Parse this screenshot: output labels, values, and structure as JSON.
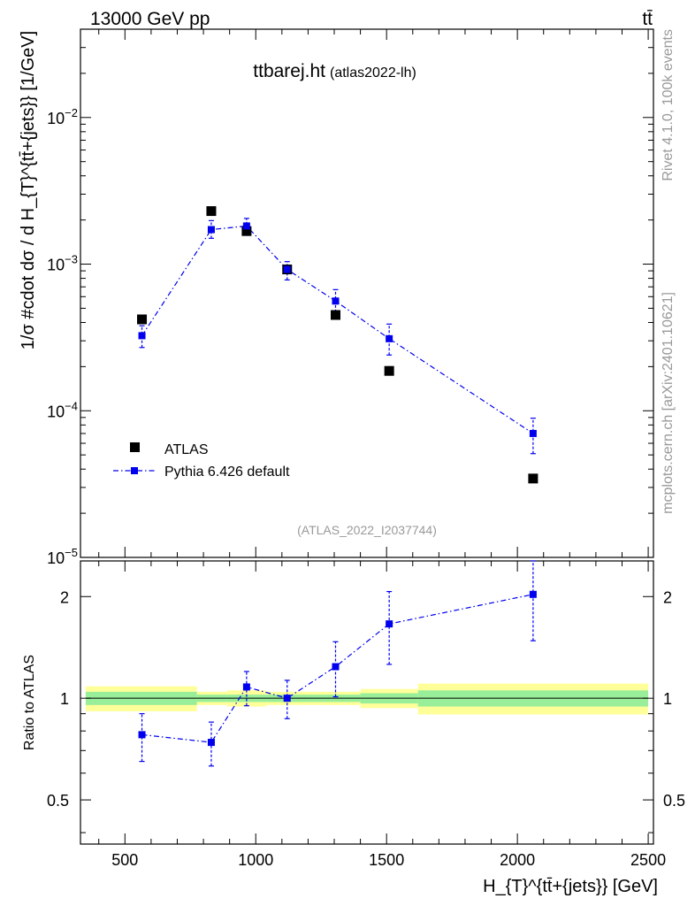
{
  "header": {
    "energy_label": "13000 GeV pp",
    "process_label": "tt̄"
  },
  "side_labels": {
    "rivet": "Rivet 4.1.0,  100k events",
    "mcplots": "mcplots.cern.ch [arXiv:2401.10621]"
  },
  "colors": {
    "mc": "#0000ee",
    "data": "#000000",
    "band_inner": "#99ee99",
    "band_outer": "#ffff99",
    "faint_text": "#999999"
  },
  "chart_data": [
    {
      "type": "scatter",
      "title": "ttbarej.ht",
      "subtitle": "(atlas2022-lh)",
      "watermark": "(ATLAS_2022_I2037744)",
      "ylabel": "1/σ #cdot dσ / d H_{T}^{tt̄+{jets}} [1/GeV]",
      "yscale": "log",
      "xlim": [
        330,
        2520
      ],
      "ylim": [
        1e-05,
        0.04
      ],
      "ytick_labels": [
        {
          "value": 1e-05,
          "label": "10",
          "exp": "−5"
        },
        {
          "value": 0.0001,
          "label": "10",
          "exp": "−4"
        },
        {
          "value": 0.001,
          "label": "10",
          "exp": "−3"
        },
        {
          "value": 0.01,
          "label": "10",
          "exp": "−2"
        }
      ],
      "legend": {
        "position": "lower-left",
        "entries": [
          {
            "name": "ATLAS",
            "marker": "square-black"
          },
          {
            "name": "Pythia 6.426 default",
            "marker": "square-blue-dashdot"
          }
        ]
      },
      "series": [
        {
          "name": "ATLAS",
          "x": [
            565,
            830,
            965,
            1120,
            1305,
            1510,
            2060
          ],
          "y": [
            0.00042,
            0.0023,
            0.00168,
            0.00092,
            0.00045,
            0.000187,
            3.45e-05
          ]
        },
        {
          "name": "Pythia 6.426 default",
          "x": [
            565,
            830,
            965,
            1120,
            1305,
            1510,
            2060
          ],
          "y": [
            0.000325,
            0.00172,
            0.00182,
            0.00092,
            0.00056,
            0.00031,
            7e-05
          ],
          "y_lo": [
            0.00027,
            0.0015,
            0.00162,
            0.00078,
            0.00047,
            0.00024,
            5.1e-05
          ],
          "y_hi": [
            0.00038,
            0.00198,
            0.00205,
            0.00104,
            0.00067,
            0.00039,
            8.9e-05
          ]
        }
      ]
    },
    {
      "type": "line",
      "ylabel": "Ratio to ATLAS",
      "xlabel": "H_{T}^{tt̄+{jets}} [GeV]",
      "yscale": "log",
      "xlim": [
        330,
        2520
      ],
      "ylim": [
        0.37,
        2.55
      ],
      "xtick_labels": [
        500,
        1000,
        1500,
        2000,
        2500
      ],
      "ytick_labels": [
        0.5,
        1,
        2
      ],
      "bands": [
        {
          "x_lo": 350,
          "x_hi": 775,
          "inner_lo": 0.955,
          "inner_hi": 1.045,
          "outer_lo": 0.915,
          "outer_hi": 1.085
        },
        {
          "x_lo": 775,
          "x_hi": 890,
          "inner_lo": 0.975,
          "inner_hi": 1.025,
          "outer_lo": 0.955,
          "outer_hi": 1.045
        },
        {
          "x_lo": 890,
          "x_hi": 1040,
          "inner_lo": 0.975,
          "inner_hi": 1.025,
          "outer_lo": 0.945,
          "outer_hi": 1.055
        },
        {
          "x_lo": 1040,
          "x_hi": 1200,
          "inner_lo": 0.975,
          "inner_hi": 1.025,
          "outer_lo": 0.955,
          "outer_hi": 1.045
        },
        {
          "x_lo": 1200,
          "x_hi": 1400,
          "inner_lo": 0.975,
          "inner_hi": 1.025,
          "outer_lo": 0.955,
          "outer_hi": 1.045
        },
        {
          "x_lo": 1400,
          "x_hi": 1620,
          "inner_lo": 0.965,
          "inner_hi": 1.035,
          "outer_lo": 0.935,
          "outer_hi": 1.065
        },
        {
          "x_lo": 1620,
          "x_hi": 2500,
          "inner_lo": 0.945,
          "inner_hi": 1.055,
          "outer_lo": 0.895,
          "outer_hi": 1.105
        }
      ],
      "series": [
        {
          "name": "Pythia 6.426 default / ATLAS",
          "x": [
            565,
            830,
            965,
            1120,
            1305,
            1510,
            2060
          ],
          "y": [
            0.78,
            0.74,
            1.08,
            1.0,
            1.24,
            1.66,
            2.03
          ],
          "y_lo": [
            0.65,
            0.63,
            0.95,
            0.87,
            1.01,
            1.26,
            1.48
          ],
          "y_hi": [
            0.9,
            0.85,
            1.2,
            1.13,
            1.47,
            2.07,
            2.58
          ]
        }
      ]
    }
  ]
}
